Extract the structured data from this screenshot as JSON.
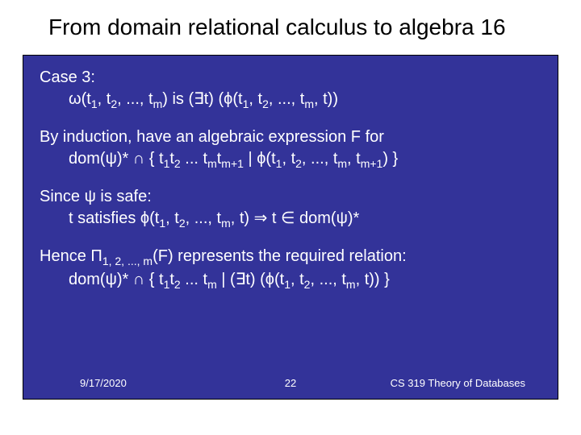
{
  "slide": {
    "title": "From domain relational calculus to algebra 16",
    "background_color": "#333399",
    "text_color": "#ffffff",
    "title_color": "#000000",
    "title_fontsize": 28,
    "body_fontsize": 20,
    "case_label": "Case 3:",
    "case_def_prefix": "ω(t",
    "case_def_mid1": ", t",
    "case_def_mid2": ", ..., t",
    "case_def_mid3": ") is (∃t) (ϕ(t",
    "case_def_end": ", t))",
    "induction_line": "By induction, have an algebraic expression F for",
    "dom_prefix": "dom(ψ)* ∩ { t",
    "dom_mid1": "t",
    "dom_mid2": " ... t",
    "dom_mid3": "t",
    "dom_mid4": " | ϕ(t",
    "dom_mid5": ", t",
    "dom_mid6": ", ..., t",
    "dom_mid7": ", t",
    "dom_end": ") }",
    "since_line": "Since ψ is safe:",
    "sat_prefix": "t satisfies ϕ(t",
    "sat_mid1": ", t",
    "sat_mid2": ", ..., t",
    "sat_end": ", t) ⇒ t ∈ dom(ψ)*",
    "hence_prefix": "Hence Π",
    "hence_sub": "1, 2, ..., m",
    "hence_end": "(F) represents the required relation:",
    "final_prefix": "dom(ψ)* ∩ { t",
    "final_mid1": "t",
    "final_mid2": " ... t",
    "final_mid3": " | (∃t) (ϕ(t",
    "final_mid4": ", t",
    "final_mid5": ", ..., t",
    "final_end": ", t)) }",
    "sub_1": "1",
    "sub_2": "2",
    "sub_m": "m",
    "sub_mp1": "m+1"
  },
  "footer": {
    "date": "9/17/2020",
    "page": "22",
    "course": "CS 319 Theory of Databases"
  }
}
